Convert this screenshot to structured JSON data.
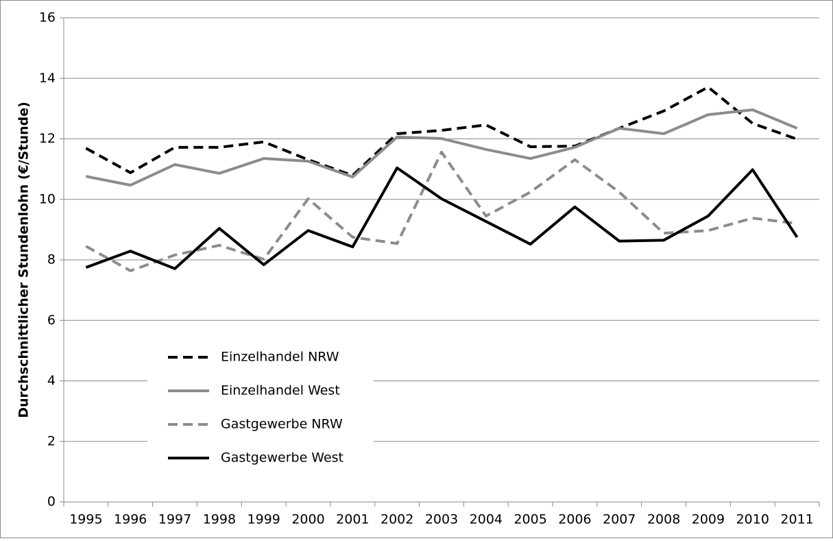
{
  "chart_data": {
    "type": "line",
    "y_label": "Durchschnittlicher Stundenlohn (€/Stunde)",
    "categories": [
      "1995",
      "1996",
      "1997",
      "1998",
      "1999",
      "2000",
      "2001",
      "2002",
      "2003",
      "2004",
      "2005",
      "2006",
      "2007",
      "2008",
      "2009",
      "2010",
      "2011"
    ],
    "series": [
      {
        "name": "Einzelhandel NRW",
        "color": "#000000",
        "dash": true,
        "values": [
          11.69,
          10.88,
          11.72,
          11.72,
          11.9,
          11.31,
          10.79,
          12.17,
          12.28,
          12.46,
          11.74,
          11.76,
          12.35,
          12.92,
          13.71,
          12.51,
          11.99
        ]
      },
      {
        "name": "Einzelhandel West",
        "color": "#8c8c8c",
        "dash": false,
        "values": [
          10.76,
          10.47,
          11.15,
          10.86,
          11.35,
          11.26,
          10.74,
          12.06,
          12.01,
          11.65,
          11.35,
          11.72,
          12.35,
          12.17,
          12.8,
          12.96,
          12.35
        ]
      },
      {
        "name": "Gastgewerbe NRW",
        "color": "#8c8c8c",
        "dash": true,
        "values": [
          8.45,
          7.64,
          8.16,
          8.48,
          8.02,
          10.02,
          8.75,
          8.54,
          11.56,
          9.45,
          10.24,
          11.31,
          10.24,
          8.88,
          8.97,
          9.38,
          9.2
        ]
      },
      {
        "name": "Gastgewerbe West",
        "color": "#000000",
        "dash": false,
        "values": [
          7.75,
          8.29,
          7.71,
          9.04,
          7.84,
          8.97,
          8.43,
          11.04,
          10.02,
          9.27,
          8.52,
          9.75,
          8.62,
          8.65,
          9.45,
          10.98,
          8.75
        ]
      }
    ],
    "ylim": [
      0,
      16
    ],
    "yticks": [
      0,
      2,
      4,
      6,
      8,
      10,
      12,
      14,
      16
    ],
    "grid": true,
    "legend": "lower-left"
  }
}
